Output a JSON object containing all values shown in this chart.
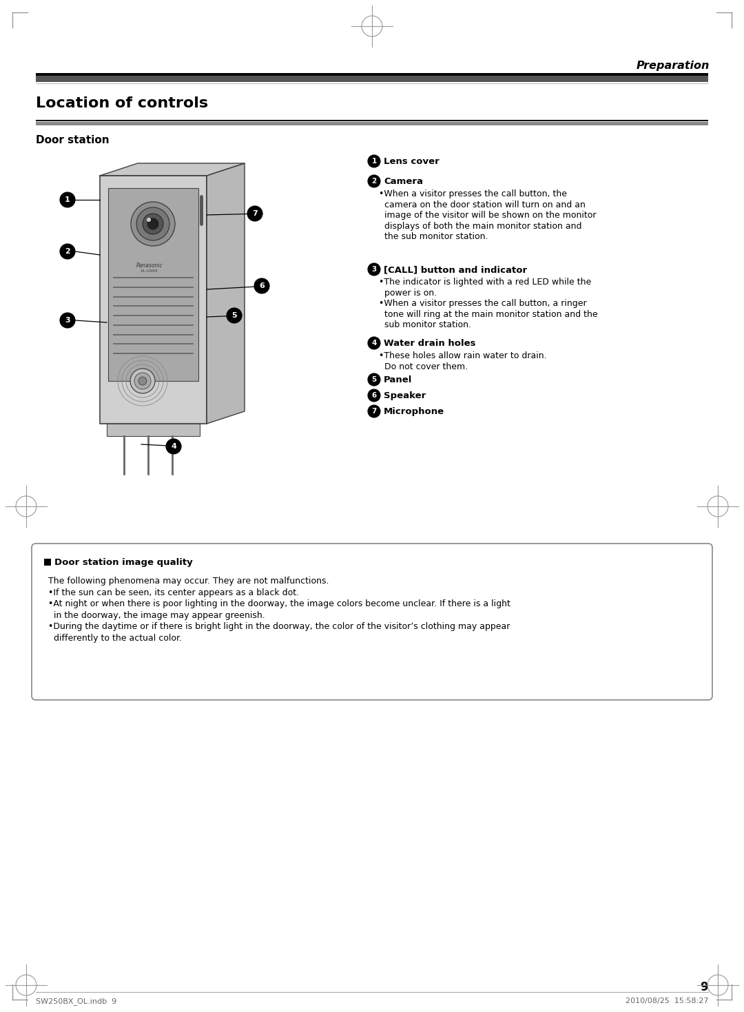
{
  "page_title": "Preparation",
  "section_title": "Location of controls",
  "subsection_title": "Door station",
  "items": [
    {
      "num": "1",
      "bold": "Lens cover",
      "body": null
    },
    {
      "num": "2",
      "bold": "Camera",
      "body": [
        "•When a visitor presses the call button, the",
        "  camera on the door station will turn on and an",
        "  image of the visitor will be shown on the monitor",
        "  displays of both the main monitor station and",
        "  the sub monitor station."
      ]
    },
    {
      "num": "3",
      "bold": "[CALL] button and indicator",
      "body": [
        "•The indicator is lighted with a red LED while the",
        "  power is on.",
        "•When a visitor presses the call button, a ringer",
        "  tone will ring at the main monitor station and the",
        "  sub monitor station."
      ]
    },
    {
      "num": "4",
      "bold": "Water drain holes",
      "body": [
        "•These holes allow rain water to drain.",
        "  Do not cover them."
      ]
    },
    {
      "num": "5",
      "bold": "Panel",
      "body": null
    },
    {
      "num": "6",
      "bold": "Speaker",
      "body": null
    },
    {
      "num": "7",
      "bold": "Microphone",
      "body": null
    }
  ],
  "note_title": "Door station image quality",
  "note_body": [
    "The following phenomena may occur. They are not malfunctions.",
    "•If the sun can be seen, its center appears as a black dot.",
    "•At night or when there is poor lighting in the doorway, the image colors become unclear. If there is a light",
    "  in the doorway, the image may appear greenish.",
    "•During the daytime or if there is bright light in the doorway, the color of the visitor’s clothing may appear",
    "  differently to the actual color."
  ],
  "page_number": "9",
  "footer_left": "SW250BX_OL.indb  9",
  "footer_right": "2010/08/25  15:58:27",
  "bg_color": "#ffffff",
  "text_color": "#000000"
}
